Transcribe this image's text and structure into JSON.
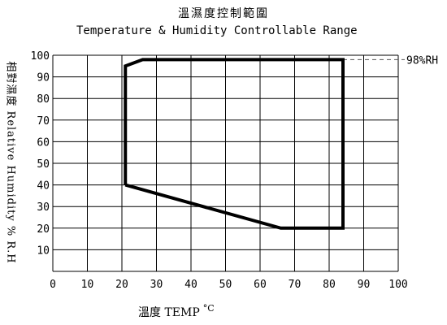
{
  "chart_data": {
    "type": "line",
    "title_cn": "溫濕度控制範圍",
    "title": "Temperature & Humidity Controllable Range",
    "ylabel": "相對濕度 Relative Humidity % R.H",
    "xlabel_prefix": "溫度 TEMP",
    "xlabel_unit": "°C",
    "xlim": [
      0,
      100
    ],
    "ylim": [
      0,
      100
    ],
    "x_ticks": [
      0,
      10,
      20,
      30,
      40,
      50,
      60,
      70,
      80,
      90,
      100
    ],
    "y_ticks": [
      10,
      20,
      30,
      40,
      50,
      60,
      70,
      80,
      90,
      100
    ],
    "grid": true,
    "series": [
      {
        "x": [
          21,
          21,
          26,
          84,
          84,
          66,
          21
        ],
        "y": [
          40,
          95,
          98,
          98,
          20,
          20,
          40
        ]
      }
    ],
    "annotations": [
      {
        "text": "98%RH",
        "y": 98
      }
    ],
    "colors": {
      "line": "#000000",
      "grid": "#000000",
      "dashed": "#555555"
    }
  }
}
